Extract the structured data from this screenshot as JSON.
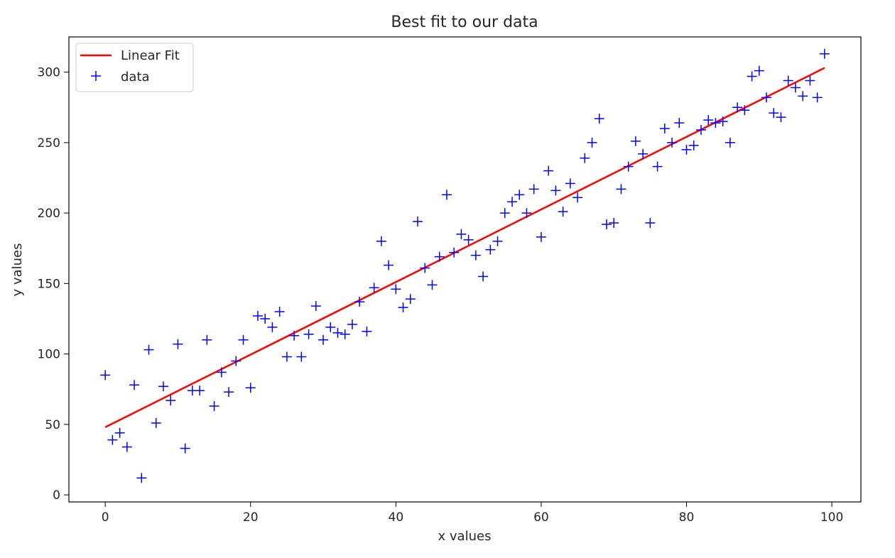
{
  "chart_data": {
    "type": "scatter",
    "title": "Best fit to our data",
    "xlabel": "x values",
    "ylabel": "y values",
    "xlim": [
      -5,
      104
    ],
    "ylim": [
      -5,
      325
    ],
    "xticks": [
      0,
      20,
      40,
      60,
      80,
      100
    ],
    "yticks": [
      0,
      50,
      100,
      150,
      200,
      250,
      300
    ],
    "grid": false,
    "legend_position": "top-left",
    "series": [
      {
        "name": "Linear Fit",
        "kind": "line",
        "color": "#ff0000",
        "x": [
          0,
          99
        ],
        "y": [
          48,
          303
        ]
      },
      {
        "name": "data",
        "kind": "scatter",
        "marker": "+",
        "color": "#0000ff",
        "x": [
          0,
          1,
          2,
          3,
          4,
          5,
          6,
          7,
          8,
          9,
          10,
          11,
          12,
          13,
          14,
          15,
          16,
          17,
          18,
          19,
          20,
          21,
          22,
          23,
          24,
          25,
          26,
          27,
          28,
          29,
          30,
          31,
          32,
          33,
          34,
          35,
          36,
          37,
          38,
          39,
          40,
          41,
          42,
          43,
          44,
          45,
          46,
          47,
          48,
          49,
          50,
          51,
          52,
          53,
          54,
          55,
          56,
          57,
          58,
          59,
          60,
          61,
          62,
          63,
          64,
          65,
          66,
          67,
          68,
          69,
          70,
          71,
          72,
          73,
          74,
          75,
          76,
          77,
          78,
          79,
          80,
          81,
          82,
          83,
          84,
          85,
          86,
          87,
          88,
          89,
          90,
          91,
          92,
          93,
          94,
          95,
          96,
          97,
          98,
          99
        ],
        "y": [
          85,
          39,
          44,
          34,
          78,
          12,
          103,
          51,
          77,
          67,
          107,
          33,
          74,
          74,
          110,
          63,
          87,
          73,
          95,
          110,
          76,
          127,
          125,
          119,
          130,
          98,
          113,
          98,
          114,
          134,
          110,
          119,
          115,
          114,
          121,
          137,
          116,
          147,
          180,
          163,
          146,
          133,
          139,
          194,
          161,
          149,
          169,
          213,
          172,
          185,
          181,
          170,
          155,
          174,
          180,
          200,
          208,
          213,
          200,
          217,
          183,
          230,
          216,
          201,
          221,
          211,
          239,
          250,
          267,
          192,
          193,
          217,
          233,
          251,
          242,
          193,
          233,
          260,
          250,
          264,
          245,
          248,
          259,
          266,
          264,
          265,
          250,
          275,
          273,
          297,
          301,
          282,
          271,
          268,
          294,
          289,
          283,
          294,
          282,
          313
        ]
      }
    ]
  }
}
